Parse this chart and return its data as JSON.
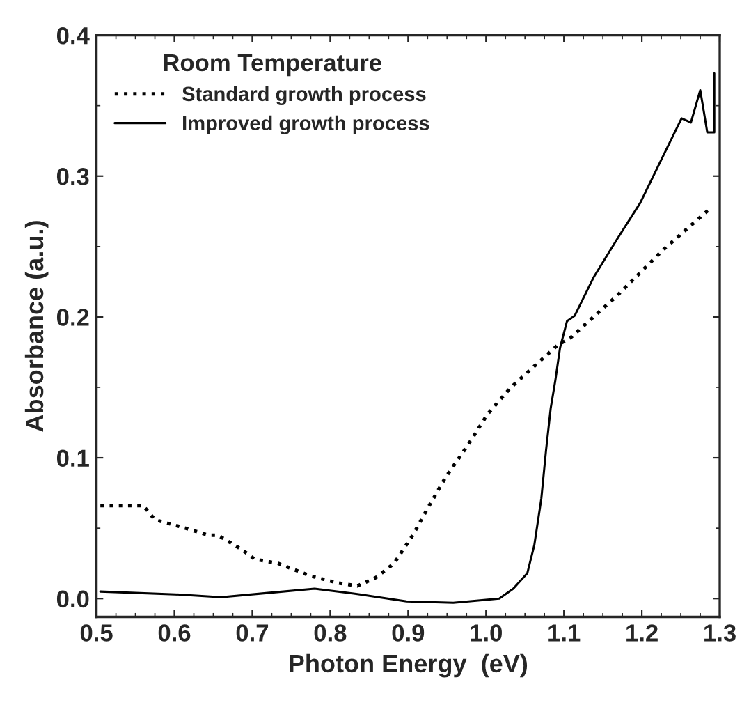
{
  "chart_data": {
    "type": "line",
    "xlabel": "Photon Energy  (eV)",
    "ylabel": "Absorbance (a.u.)",
    "legend_title": "Room Temperature",
    "legend": "top left",
    "grid": false,
    "xlim": [
      0.5,
      1.3
    ],
    "xticks": [
      0.5,
      0.6,
      0.7,
      0.8,
      0.9,
      {
        "value": 1.0,
        "label": "1.0"
      },
      1.1,
      1.2,
      1.3
    ],
    "ylim": [
      -0.013,
      0.4
    ],
    "yticks": [
      {
        "value": 0.0,
        "label": "0.0"
      },
      0.1,
      0.2,
      0.3,
      0.4
    ],
    "series": [
      {
        "name": "Standard growth process",
        "color": "#000000",
        "line_style": "dotted",
        "x": [
          0.505,
          0.56,
          0.575,
          0.608,
          0.644,
          0.656,
          0.686,
          0.703,
          0.733,
          0.775,
          0.811,
          0.835,
          0.859,
          0.882,
          0.906,
          0.924,
          0.948,
          0.978,
          1.002,
          1.032,
          1.062,
          1.092,
          1.108,
          1.168,
          1.228,
          1.263,
          1.29
        ],
        "values": [
          0.066,
          0.066,
          0.056,
          0.051,
          0.045,
          0.045,
          0.035,
          0.028,
          0.025,
          0.016,
          0.011,
          0.009,
          0.015,
          0.025,
          0.045,
          0.063,
          0.086,
          0.11,
          0.131,
          0.15,
          0.165,
          0.18,
          0.185,
          0.215,
          0.248,
          0.265,
          0.278
        ]
      },
      {
        "name": "Improved growth process",
        "color": "#000000",
        "line_style": "solid",
        "x": [
          0.505,
          0.601,
          0.66,
          0.72,
          0.78,
          0.838,
          0.898,
          0.958,
          1.017,
          1.035,
          1.053,
          1.062,
          1.071,
          1.077,
          1.083,
          1.089,
          1.095,
          1.104,
          1.114,
          1.138,
          1.168,
          1.198,
          1.228,
          1.251,
          1.263,
          1.275,
          1.284,
          1.293,
          1.293
        ],
        "values": [
          0.005,
          0.003,
          0.001,
          0.004,
          0.007,
          0.003,
          -0.002,
          -0.003,
          0.0,
          0.007,
          0.018,
          0.038,
          0.071,
          0.105,
          0.135,
          0.155,
          0.178,
          0.197,
          0.201,
          0.228,
          0.255,
          0.281,
          0.315,
          0.341,
          0.338,
          0.361,
          0.331,
          0.331,
          0.373
        ]
      }
    ]
  }
}
